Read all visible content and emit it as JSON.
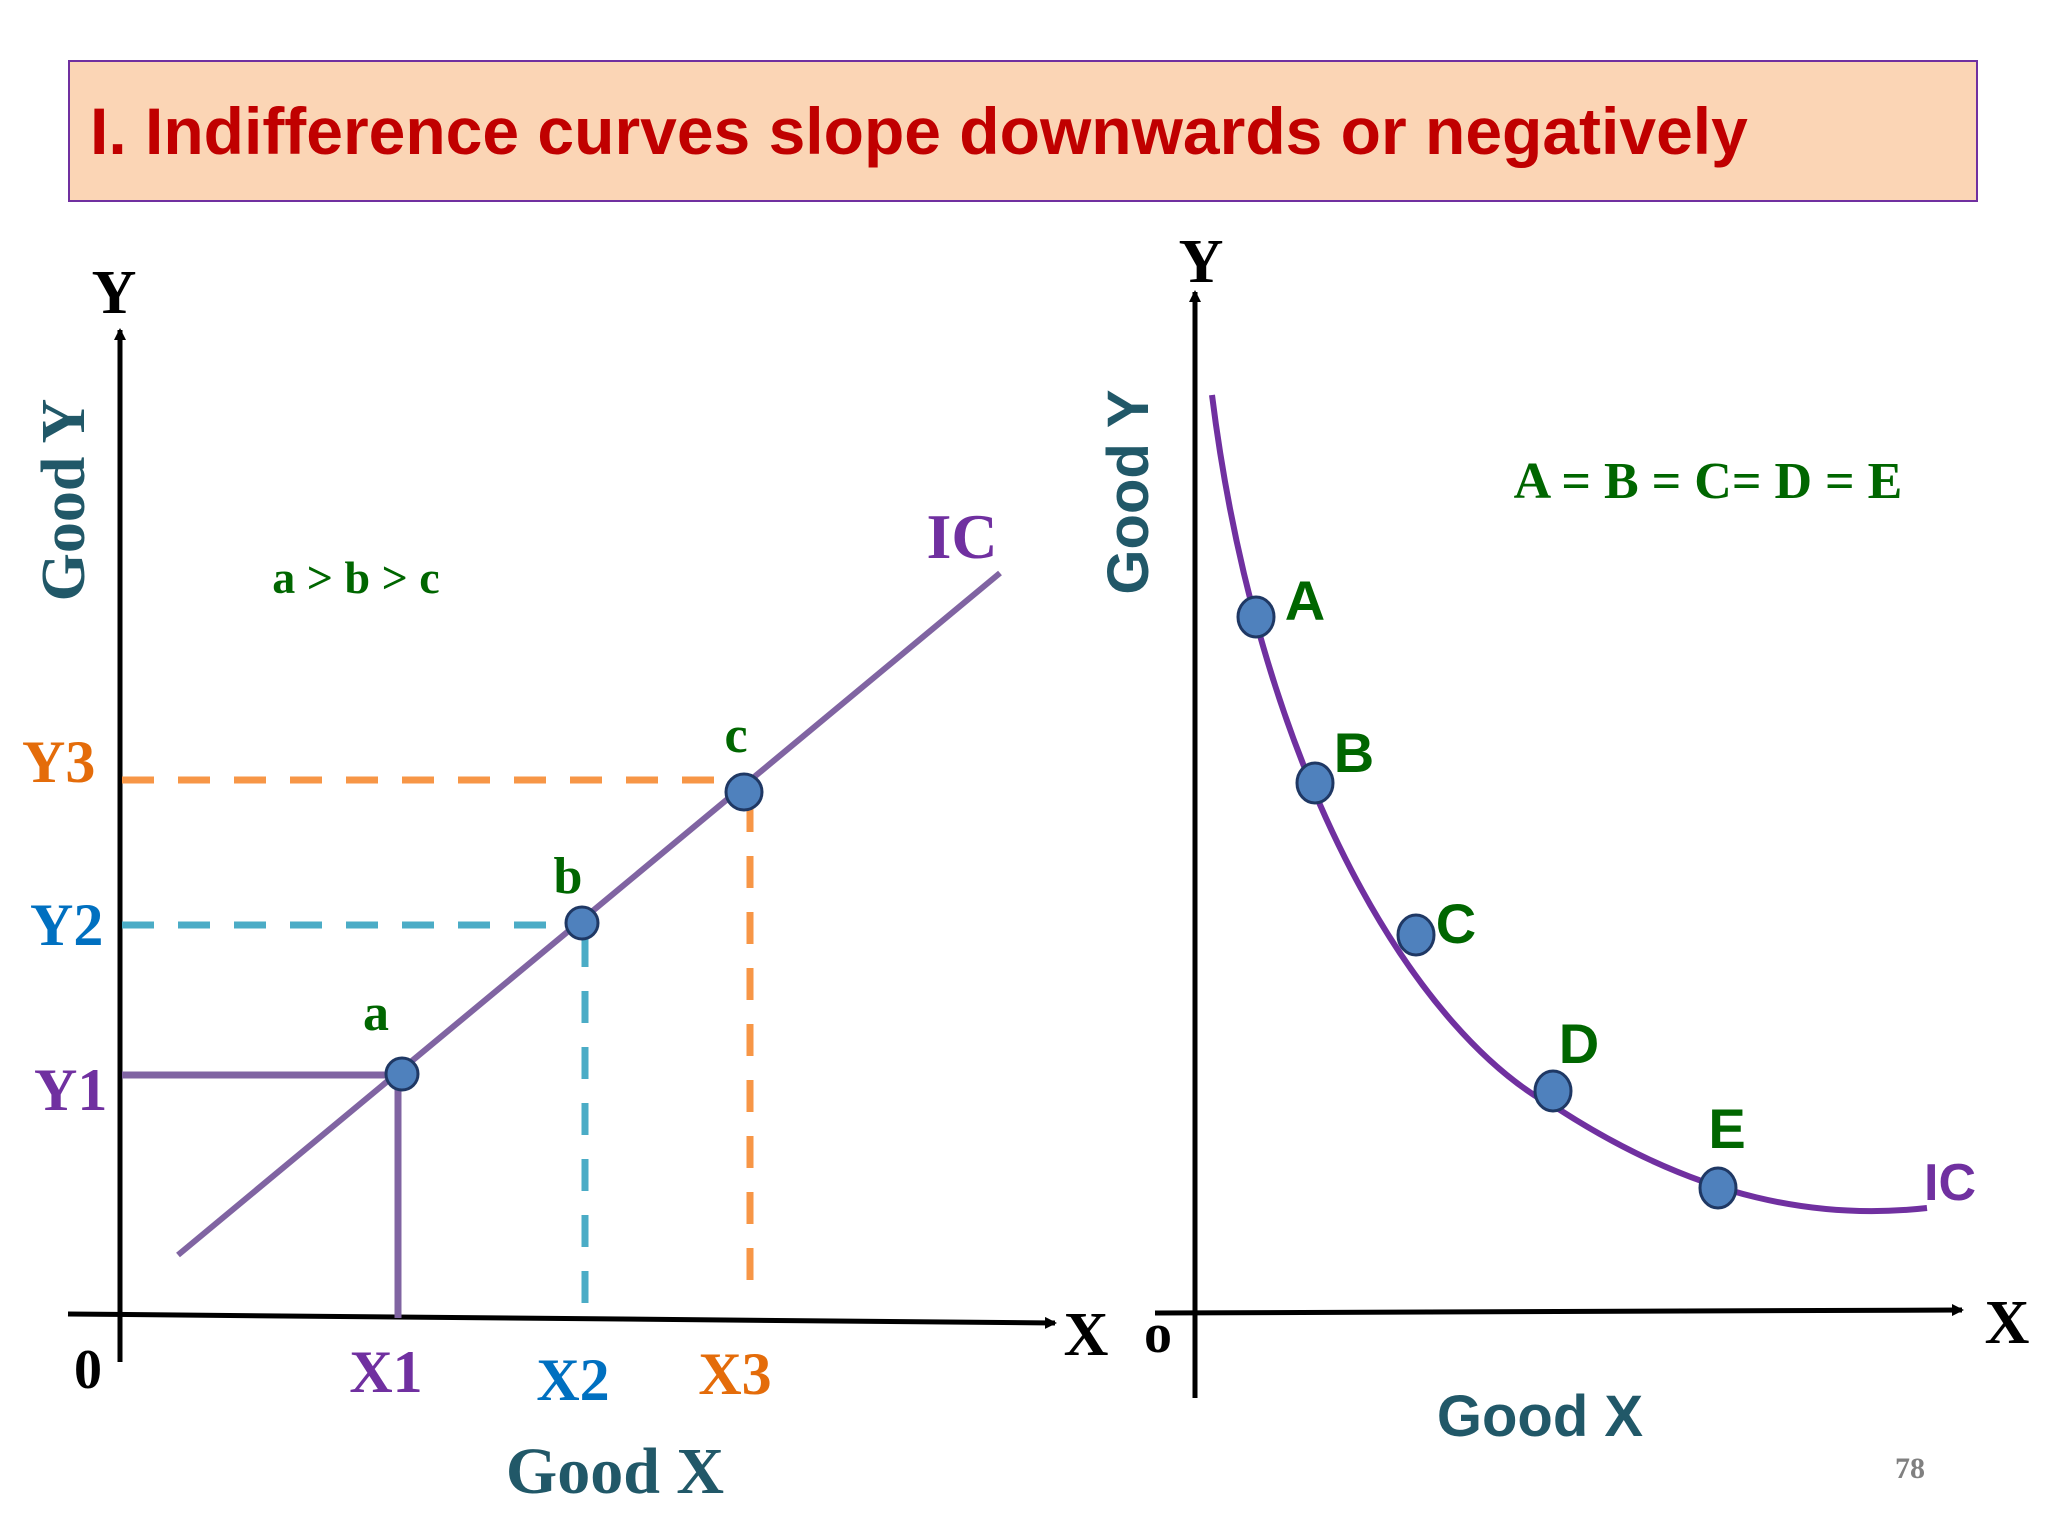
{
  "title": "I. Indifference curves slope downwards or negatively",
  "left_chart": {
    "y_axis_letter": "Y",
    "x_axis_letter": "X",
    "origin_label": "0",
    "y_axis_title": "Good Y",
    "x_axis_title": "Good X",
    "relation": "a > b > c",
    "curve_label": "IC",
    "points": [
      {
        "label": "a",
        "x_tick": "X1",
        "y_tick": "Y1",
        "color": "#7030a0"
      },
      {
        "label": "b",
        "x_tick": "X2",
        "y_tick": "Y2",
        "color": "#4bacc6"
      },
      {
        "label": "c",
        "x_tick": "X3",
        "y_tick": "Y3",
        "color": "#f79646"
      }
    ]
  },
  "right_chart": {
    "y_axis_letter": "Y",
    "x_axis_letter": "X",
    "origin_label": "o",
    "y_axis_title": "Good Y",
    "x_axis_title": "Good X",
    "relation": "A = B = C= D = E",
    "curve_label": "IC",
    "points": [
      {
        "label": "A"
      },
      {
        "label": "B"
      },
      {
        "label": "C"
      },
      {
        "label": "D"
      },
      {
        "label": "E"
      }
    ]
  },
  "page_number": "78",
  "colors": {
    "title_text": "#c00000",
    "title_background": "#fbd5b5",
    "title_border": "#7030a0",
    "curve": "#8064a2",
    "curve_right": "#7030a0",
    "point_fill": "#4f81bd",
    "label_green": "#006600",
    "axis_title": "#215868",
    "x2_tick": "#0070c0",
    "x3_tick": "#e46c0a"
  }
}
